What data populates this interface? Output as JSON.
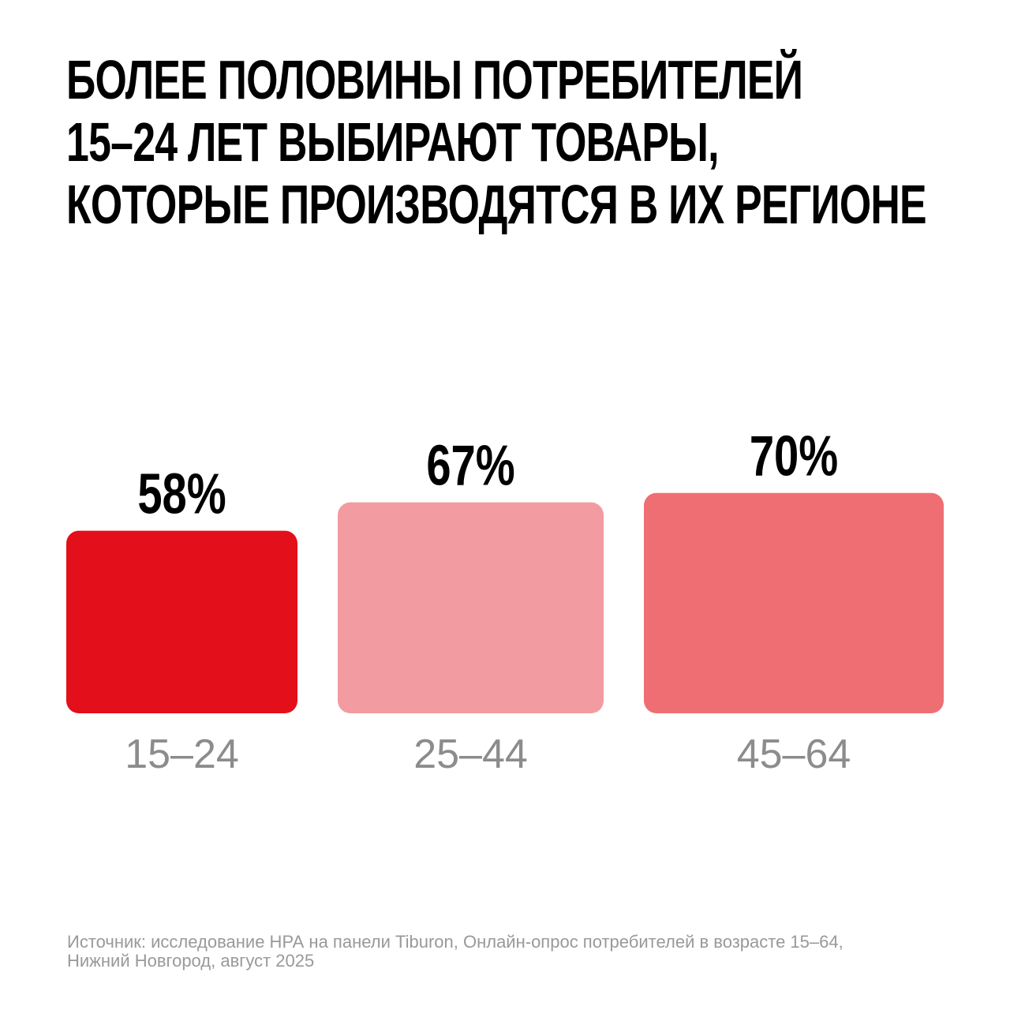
{
  "title_lines": [
    "БОЛЕЕ ПОЛОВИНЫ ПОТРЕБИТЕЛЕЙ",
    "15–24 ЛЕТ ВЫБИРАЮТ ТОВАРЫ,",
    "КОТОРЫЕ ПРОИЗВОДЯТСЯ В ИХ РЕГИОНЕ"
  ],
  "chart_data": {
    "type": "bar",
    "categories": [
      "15–24",
      "25–44",
      "45–64"
    ],
    "values": [
      58,
      67,
      70
    ],
    "value_labels": [
      "58%",
      "67%",
      "70%"
    ],
    "unit": "%",
    "colors": [
      "#e30f1b",
      "#f29ba1",
      "#ee6e74"
    ],
    "value_label_color": "#000000",
    "category_label_color": "#8c8c8c",
    "grid": false,
    "legend": "none"
  },
  "footer_lines": [
    "Источник: исследование НРА на панели Tiburon, Онлайн-опрос потребителей в возрасте 15–64,",
    "Нижний Новгород, август 2025"
  ]
}
